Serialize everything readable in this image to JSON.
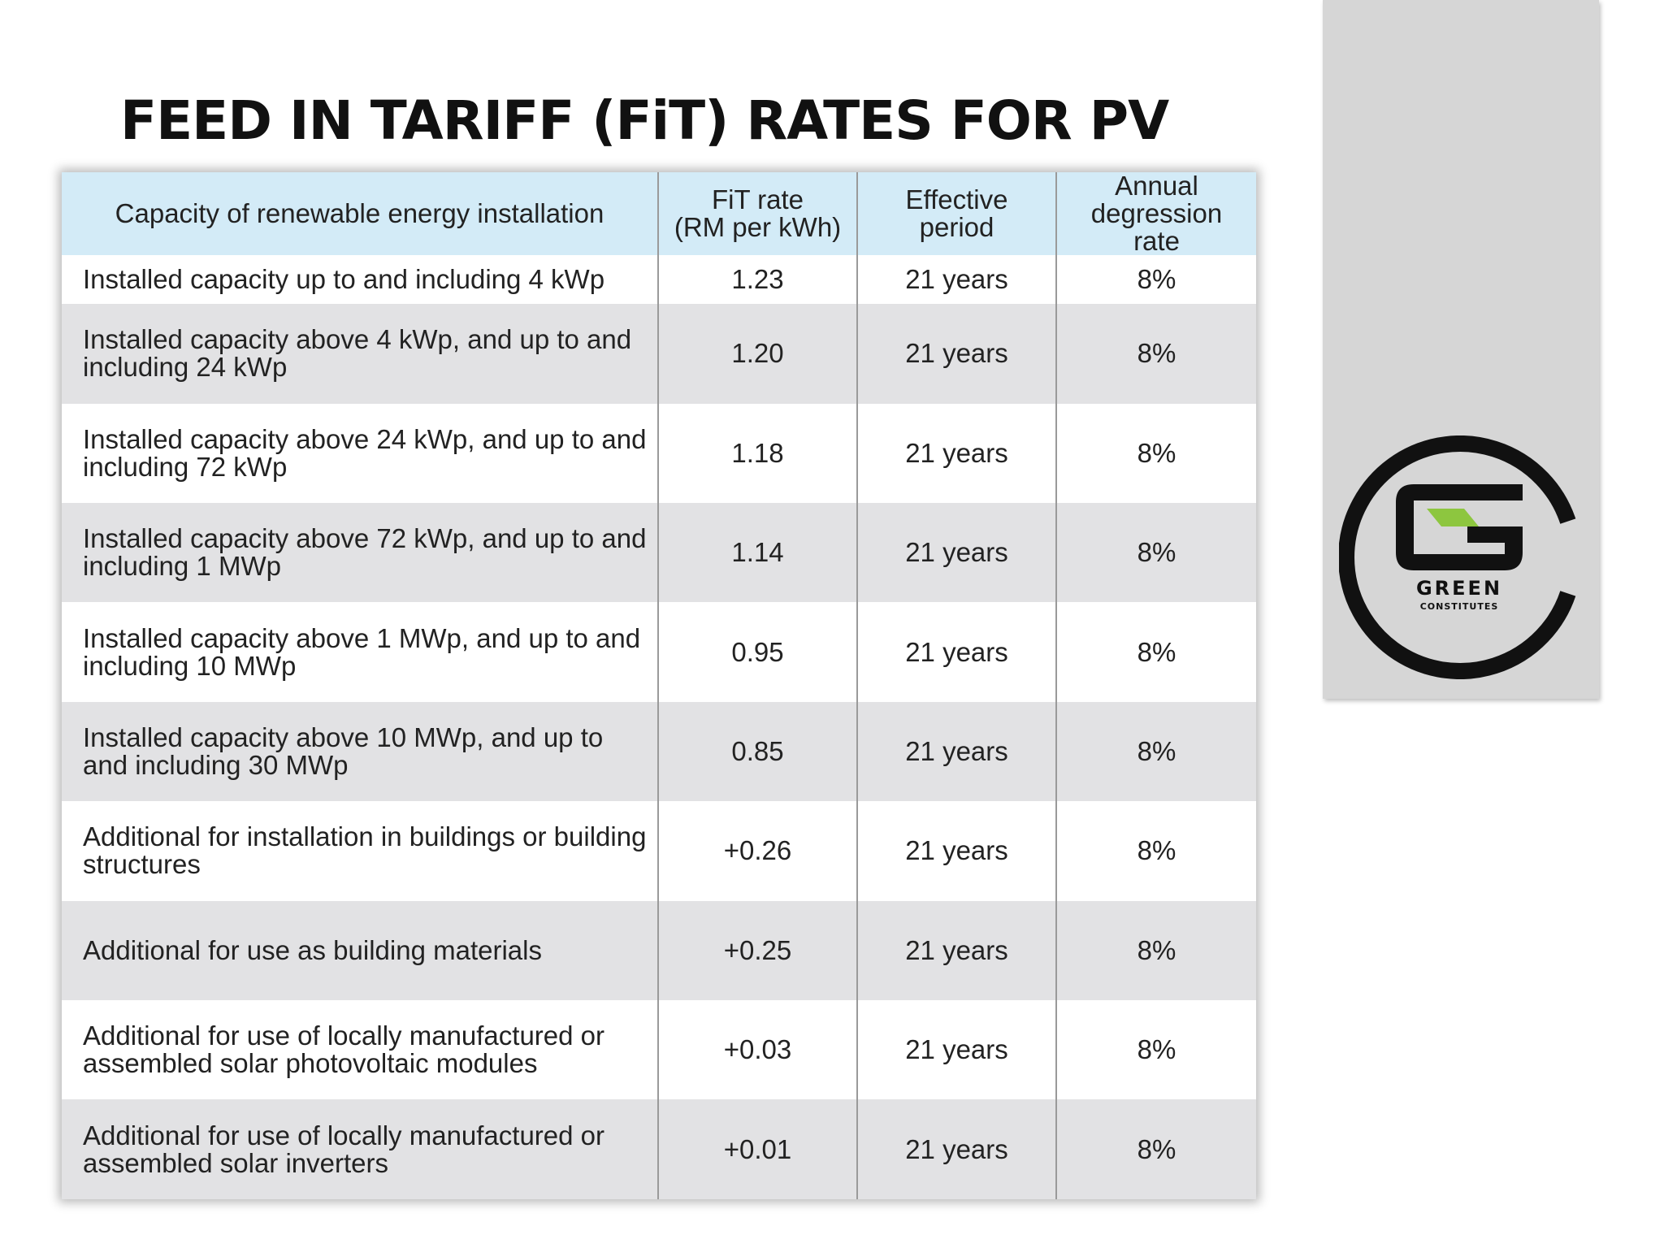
{
  "slide": {
    "title": "FEED IN TARIFF (FiT) RATES FOR PV"
  },
  "table": {
    "headers": {
      "capacity": "Capacity of renewable energy installation",
      "rate_line1": "FiT rate",
      "rate_line2": "(RM per kWh)",
      "period": "Effective period",
      "degression_line1": "Annual",
      "degression_line2": "degression rate"
    },
    "rows": [
      {
        "capacity": "Installed capacity up to and including 4 kWp",
        "rate": "1.23",
        "period": "21 years",
        "degression": "8%"
      },
      {
        "capacity": "Installed capacity above 4 kWp, and up to and including 24 kWp",
        "rate": "1.20",
        "period": "21 years",
        "degression": "8%"
      },
      {
        "capacity": "Installed capacity above 24 kWp, and up to and including 72 kWp",
        "rate": "1.18",
        "period": "21 years",
        "degression": "8%"
      },
      {
        "capacity": "Installed capacity above 72 kWp, and up to and including 1 MWp",
        "rate": "1.14",
        "period": "21 years",
        "degression": "8%"
      },
      {
        "capacity": "Installed capacity above 1 MWp, and up to and including 10 MWp",
        "rate": "0.95",
        "period": "21 years",
        "degression": "8%"
      },
      {
        "capacity": "Installed capacity above 10 MWp, and up to and including 30 MWp",
        "rate": "0.85",
        "period": "21 years",
        "degression": "8%"
      },
      {
        "capacity": "Additional for installation in buildings or building structures",
        "rate": "+0.26",
        "period": "21 years",
        "degression": "8%"
      },
      {
        "capacity": "Additional for use as building materials",
        "rate": "+0.25",
        "period": "21 years",
        "degression": "8%"
      },
      {
        "capacity": "Additional for use of locally manufactured or assembled solar photovoltaic modules",
        "rate": "+0.03",
        "period": "21 years",
        "degression": "8%"
      },
      {
        "capacity": "Additional for use of locally manufactured or assembled solar inverters",
        "rate": "+0.01",
        "period": "21 years",
        "degression": "8%"
      }
    ]
  },
  "logo": {
    "line1": "GREEN",
    "line2": "CONSTITUTES",
    "accent_color": "#8dc63f",
    "ring_color": "#111111"
  }
}
